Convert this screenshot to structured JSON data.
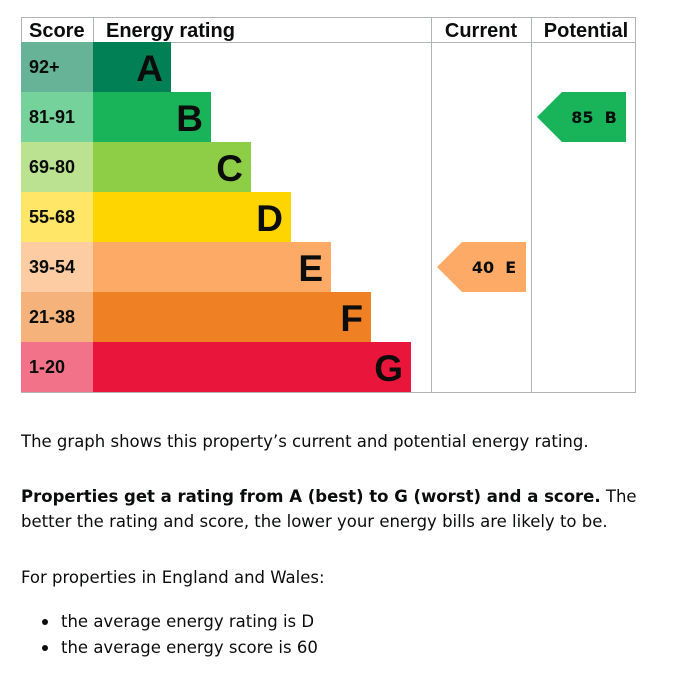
{
  "chart_data": {
    "type": "bar",
    "headers": {
      "score": "Score",
      "rating": "Energy rating",
      "current": "Current",
      "potential": "Potential"
    },
    "bands": [
      {
        "range": "92+",
        "letter": "A",
        "color": "#008054",
        "bg": "#66b398"
      },
      {
        "range": "81-91",
        "letter": "B",
        "color": "#19b459",
        "bg": "#75d29b"
      },
      {
        "range": "69-80",
        "letter": "C",
        "color": "#8dce46",
        "bg": "#bbe290"
      },
      {
        "range": "55-68",
        "letter": "D",
        "color": "#ffd500",
        "bg": "#ffe666"
      },
      {
        "range": "39-54",
        "letter": "E",
        "color": "#fcaa65",
        "bg": "#fdcca3"
      },
      {
        "range": "21-38",
        "letter": "F",
        "color": "#ef8023",
        "bg": "#f5b37b"
      },
      {
        "range": "1-20",
        "letter": "G",
        "color": "#e9153b",
        "bg": "#f27389"
      }
    ],
    "current": {
      "score": 40,
      "band": "E",
      "label": "40 E"
    },
    "potential": {
      "score": 85,
      "band": "B",
      "label": "85 B"
    }
  },
  "text": {
    "intro": "The graph shows this property’s current and potential energy rating.",
    "rating_bold": "Properties get a rating from A (best) to G (worst) and a score.",
    "rating_rest": " The better the rating and score, the lower your energy bills are likely to be.",
    "region_intro": "For properties in England and Wales:",
    "bullets": [
      "the average energy rating is D",
      "the average energy score is 60"
    ]
  }
}
